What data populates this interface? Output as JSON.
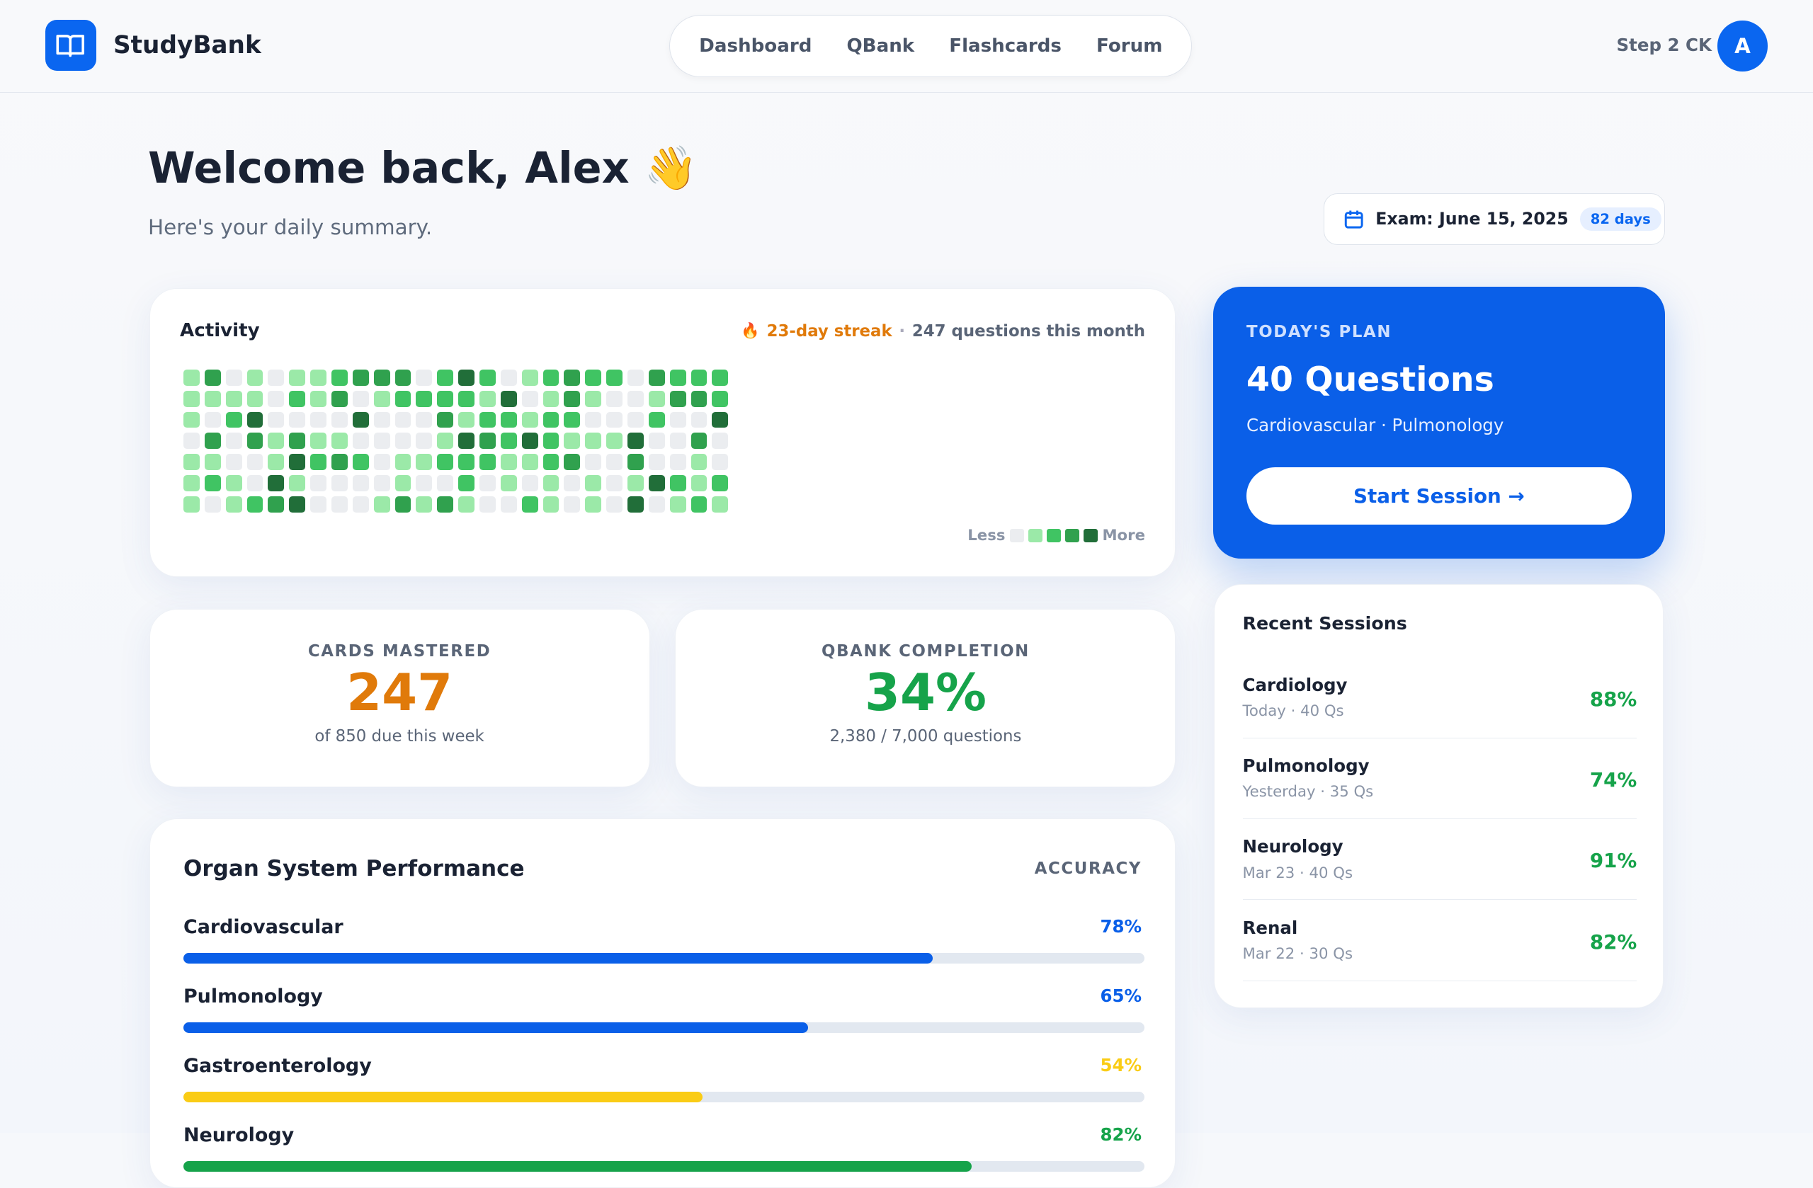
{
  "header": {
    "brand": "StudyBank",
    "nav": [
      "Dashboard",
      "QBank",
      "Flashcards",
      "Forum"
    ],
    "exam_track": "Step 2 CK",
    "avatar_initial": "A"
  },
  "welcome": {
    "title": "Welcome back, Alex 👋",
    "subtitle": "Here's your daily summary."
  },
  "exam": {
    "label": "Exam: June 15, 2025",
    "days": "82 days"
  },
  "activity": {
    "title": "Activity",
    "streak": "23-day streak",
    "separator": "·",
    "month": "247 questions this month",
    "legend_less": "Less",
    "legend_more": "More",
    "colors": [
      "#ebedf0",
      "#9be9a8",
      "#40c463",
      "#30a14e",
      "#216e39"
    ],
    "grid": [
      [
        1,
        3,
        0,
        1,
        0,
        1,
        1,
        2,
        3,
        3,
        3,
        0,
        2,
        4,
        2,
        0,
        1,
        2,
        3,
        2,
        2,
        0,
        3,
        2,
        2,
        2
      ],
      [
        1,
        1,
        1,
        1,
        0,
        2,
        1,
        3,
        0,
        1,
        2,
        2,
        2,
        2,
        1,
        4,
        0,
        1,
        3,
        1,
        0,
        0,
        1,
        3,
        3,
        2
      ],
      [
        1,
        0,
        2,
        4,
        0,
        0,
        0,
        0,
        4,
        0,
        0,
        0,
        3,
        1,
        2,
        2,
        1,
        2,
        2,
        0,
        0,
        0,
        2,
        0,
        0,
        4
      ],
      [
        0,
        3,
        0,
        3,
        1,
        3,
        1,
        1,
        0,
        0,
        0,
        0,
        1,
        4,
        3,
        2,
        4,
        2,
        1,
        1,
        1,
        4,
        0,
        0,
        3,
        0
      ],
      [
        1,
        1,
        0,
        0,
        1,
        4,
        2,
        3,
        2,
        0,
        1,
        1,
        2,
        2,
        2,
        1,
        1,
        2,
        3,
        0,
        0,
        3,
        0,
        0,
        1,
        0
      ],
      [
        1,
        2,
        1,
        0,
        4,
        1,
        0,
        0,
        0,
        0,
        1,
        0,
        0,
        2,
        0,
        1,
        0,
        1,
        0,
        1,
        0,
        1,
        4,
        2,
        1,
        2
      ],
      [
        1,
        0,
        1,
        2,
        3,
        4,
        0,
        0,
        0,
        1,
        3,
        1,
        3,
        1,
        0,
        0,
        2,
        1,
        0,
        1,
        0,
        4,
        0,
        1,
        2,
        1
      ]
    ]
  },
  "plan": {
    "label": "TODAY'S PLAN",
    "title": "40 Questions",
    "topics": "Cardiovascular · Pulmonology",
    "button": "Start Session →"
  },
  "cards": {
    "label": "CARDS MASTERED",
    "value": "247",
    "note": "of 850 due this week"
  },
  "qbank": {
    "label": "QBANK COMPLETION",
    "value": "34%",
    "note": "2,380 / 7,000 questions"
  },
  "performance": {
    "title": "Organ System Performance",
    "column": "ACCURACY",
    "items": [
      {
        "name": "Cardiovascular",
        "value": "78%",
        "pct": 78,
        "color": "#0a5fe8"
      },
      {
        "name": "Pulmonology",
        "value": "65%",
        "pct": 65,
        "color": "#0a5fe8"
      },
      {
        "name": "Gastroenterology",
        "value": "54%",
        "pct": 54,
        "color": "#facc15"
      },
      {
        "name": "Neurology",
        "value": "82%",
        "pct": 82,
        "color": "#16a34a"
      }
    ]
  },
  "sessions": {
    "title": "Recent Sessions",
    "items": [
      {
        "name": "Cardiology",
        "meta": "Today · 40 Qs",
        "score": "88%"
      },
      {
        "name": "Pulmonology",
        "meta": "Yesterday · 35 Qs",
        "score": "74%"
      },
      {
        "name": "Neurology",
        "meta": "Mar 23 · 40 Qs",
        "score": "91%"
      },
      {
        "name": "Renal",
        "meta": "Mar 22 · 30 Qs",
        "score": "82%"
      }
    ]
  }
}
